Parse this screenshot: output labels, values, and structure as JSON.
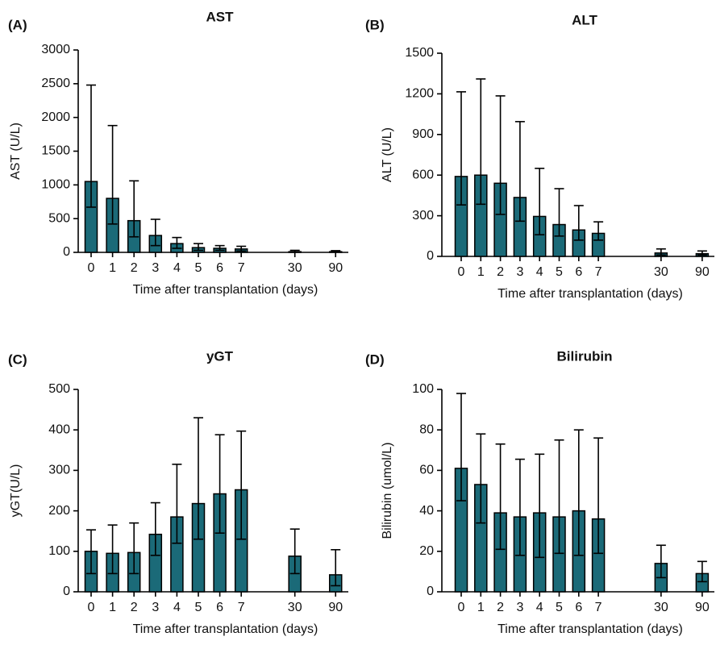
{
  "chart_data": [
    {
      "type": "bar",
      "panel_label": "(A)",
      "title": "AST",
      "y_label": "AST (U/L)",
      "x_label": "Time after transplantation (days)",
      "categories": [
        "0",
        "1",
        "2",
        "3",
        "4",
        "5",
        "6",
        "7",
        "30",
        "90"
      ],
      "values": [
        1050,
        800,
        470,
        250,
        130,
        70,
        60,
        50,
        10,
        10
      ],
      "error_high": [
        2480,
        1880,
        1060,
        490,
        220,
        130,
        100,
        90,
        30,
        25
      ],
      "error_low": [
        670,
        420,
        230,
        100,
        60,
        30,
        30,
        20,
        5,
        5
      ],
      "color": "#1b6a78",
      "ylim": [
        0,
        3000
      ],
      "yticks": [
        0,
        500,
        1000,
        1500,
        2000,
        2500,
        3000
      ]
    },
    {
      "type": "bar",
      "panel_label": "(B)",
      "title": "ALT",
      "y_label": "ALT  (U/L)",
      "x_label": "Time after transplantation (days)",
      "categories": [
        "0",
        "1",
        "2",
        "3",
        "4",
        "5",
        "6",
        "7",
        "30",
        "90"
      ],
      "values": [
        590,
        600,
        540,
        435,
        295,
        235,
        195,
        170,
        25,
        20
      ],
      "error_high": [
        1215,
        1310,
        1185,
        995,
        650,
        500,
        375,
        255,
        55,
        40
      ],
      "error_low": [
        380,
        385,
        310,
        260,
        160,
        150,
        120,
        120,
        10,
        10
      ],
      "color": "#1b6a78",
      "ylim": [
        0,
        1500
      ],
      "yticks": [
        0,
        300,
        600,
        900,
        1200,
        1500
      ]
    },
    {
      "type": "bar",
      "panel_label": "(C)",
      "title": "yGT",
      "y_label": "yGT(U/L)",
      "x_label": "Time after transplantation (days)",
      "categories": [
        "0",
        "1",
        "2",
        "3",
        "4",
        "5",
        "6",
        "7",
        "30",
        "90"
      ],
      "values": [
        100,
        95,
        97,
        142,
        185,
        218,
        242,
        252,
        88,
        42
      ],
      "error_high": [
        153,
        165,
        170,
        220,
        315,
        430,
        388,
        397,
        155,
        104
      ],
      "error_low": [
        45,
        45,
        45,
        90,
        120,
        130,
        145,
        130,
        45,
        15
      ],
      "color": "#1b6a78",
      "ylim": [
        0,
        500
      ],
      "yticks": [
        0,
        100,
        200,
        300,
        400,
        500
      ]
    },
    {
      "type": "bar",
      "panel_label": "(D)",
      "title": "Bilirubin",
      "y_label": "Bilirubin (umol/L)",
      "x_label": "Time after transplantation (days)",
      "categories": [
        "0",
        "1",
        "2",
        "3",
        "4",
        "5",
        "6",
        "7",
        "30",
        "90"
      ],
      "values": [
        61,
        53,
        39,
        37,
        39,
        37,
        40,
        36,
        14,
        9
      ],
      "error_high": [
        98,
        78,
        73,
        65.5,
        68,
        75,
        80,
        76,
        23,
        15
      ],
      "error_low": [
        45,
        34,
        21,
        18,
        17,
        19,
        18,
        19,
        7,
        5
      ],
      "color": "#1b6a78",
      "ylim": [
        0,
        100
      ],
      "yticks": [
        0,
        20,
        40,
        60,
        80,
        100
      ]
    }
  ]
}
